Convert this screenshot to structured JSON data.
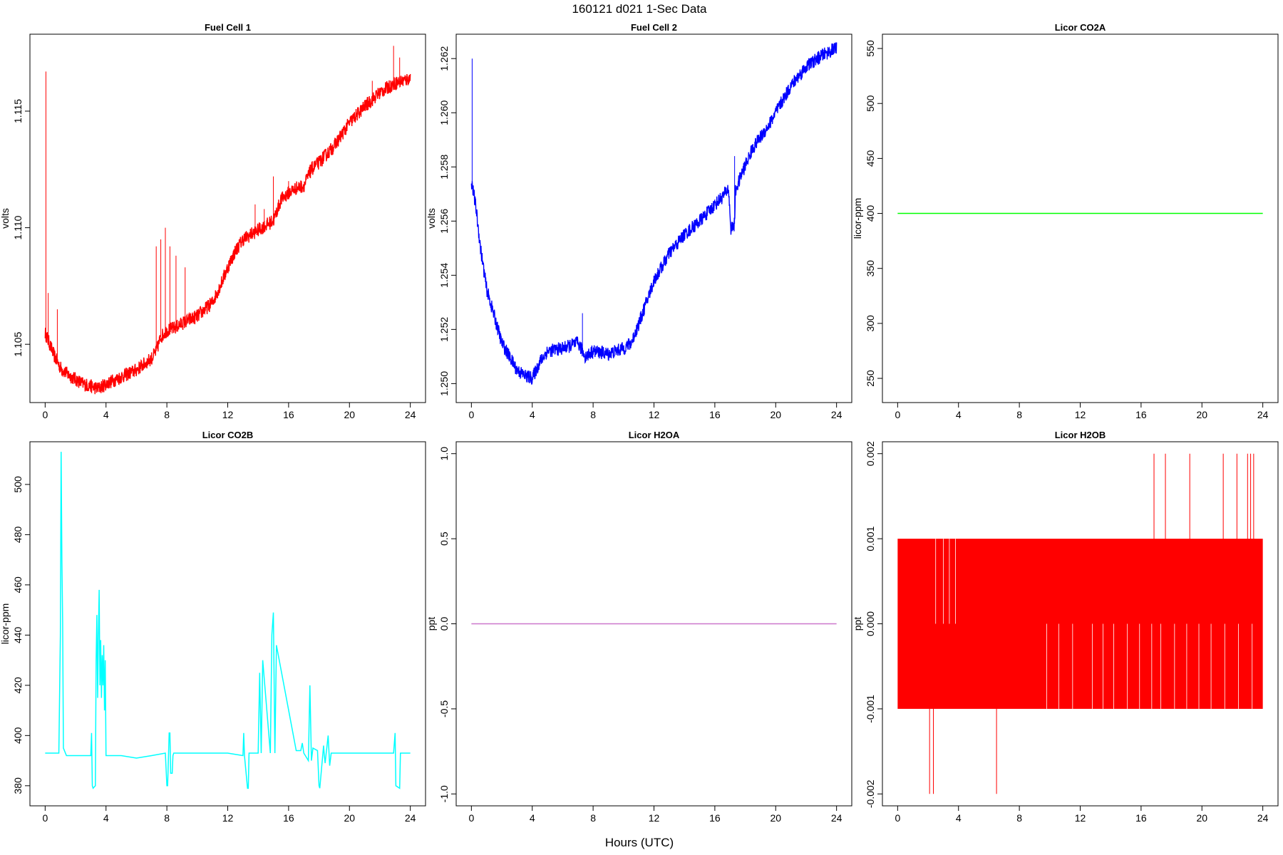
{
  "figure": {
    "title": "160121   d021   1-Sec Data",
    "xlabel": "Hours (UTC)"
  },
  "chart_data": [
    {
      "type": "line",
      "title": "Fuel Cell 1",
      "xlabel": "",
      "ylabel": "volts",
      "color": "#ff0000",
      "xlim": [
        -1,
        25
      ],
      "ylim": [
        1.1025,
        1.1183
      ],
      "x_ticks": [
        0,
        4,
        8,
        12,
        16,
        20,
        24
      ],
      "y_ticks": [
        1.105,
        1.11,
        1.115
      ],
      "y_tick_labels": [
        "1.105",
        "1.110",
        "1.115"
      ],
      "series": [
        {
          "x": [
            0,
            0.3,
            0.6,
            1,
            1.5,
            2,
            2.5,
            3,
            3.5,
            4,
            5,
            6,
            7,
            7.3,
            7.6,
            8,
            8.5,
            9,
            10,
            11,
            11.5,
            12,
            12.5,
            13,
            14,
            15,
            15.5,
            16,
            16.5,
            17,
            17.5,
            18,
            19,
            20,
            21,
            22,
            23,
            24
          ],
          "y": [
            1.1055,
            1.105,
            1.1045,
            1.104,
            1.1037,
            1.1035,
            1.1033,
            1.1032,
            1.1031,
            1.1033,
            1.1036,
            1.1039,
            1.1044,
            1.1047,
            1.1053,
            1.1056,
            1.1057,
            1.1059,
            1.1062,
            1.1068,
            1.1075,
            1.1083,
            1.109,
            1.1095,
            1.1099,
            1.1103,
            1.1112,
            1.1115,
            1.1117,
            1.1118,
            1.1125,
            1.1128,
            1.1135,
            1.1145,
            1.1152,
            1.1158,
            1.1162,
            1.1164
          ],
          "band": 0.0003,
          "spikes": [
            {
              "x": 0.05,
              "top": 1.1167
            },
            {
              "x": 0.2,
              "top": 1.1072
            },
            {
              "x": 0.8,
              "top": 1.1065
            },
            {
              "x": 7.3,
              "top": 1.1092
            },
            {
              "x": 7.6,
              "top": 1.1095
            },
            {
              "x": 7.9,
              "top": 1.11
            },
            {
              "x": 8.2,
              "top": 1.1092
            },
            {
              "x": 8.6,
              "top": 1.1088
            },
            {
              "x": 9.2,
              "top": 1.1083
            },
            {
              "x": 13.8,
              "top": 1.111
            },
            {
              "x": 14.4,
              "top": 1.1108
            },
            {
              "x": 15.0,
              "top": 1.1122
            },
            {
              "x": 16.0,
              "top": 1.112
            },
            {
              "x": 17.4,
              "top": 1.1127
            },
            {
              "x": 18.3,
              "top": 1.1133
            },
            {
              "x": 21.5,
              "top": 1.1163
            },
            {
              "x": 22.9,
              "top": 1.1178
            },
            {
              "x": 23.3,
              "top": 1.1173
            }
          ]
        }
      ]
    },
    {
      "type": "line",
      "title": "Fuel Cell 2",
      "xlabel": "",
      "ylabel": "volts",
      "color": "#0000ff",
      "xlim": [
        -1,
        25
      ],
      "ylim": [
        1.2493,
        1.2629
      ],
      "x_ticks": [
        0,
        4,
        8,
        12,
        16,
        20,
        24
      ],
      "y_ticks": [
        1.25,
        1.252,
        1.254,
        1.256,
        1.258,
        1.26,
        1.262
      ],
      "y_tick_labels": [
        "1.250",
        "1.252",
        "1.254",
        "1.256",
        "1.258",
        "1.260",
        "1.262"
      ],
      "series": [
        {
          "x": [
            0,
            0.3,
            0.6,
            1,
            1.5,
            2,
            2.5,
            3,
            3.5,
            4,
            4.5,
            5,
            6,
            7,
            7.5,
            8,
            9,
            10,
            10.5,
            11,
            12,
            13,
            14,
            15,
            16,
            16.5,
            16.9,
            17.05,
            17.3,
            17.35,
            17.8,
            18.5,
            19.5,
            20,
            21,
            22,
            23,
            24
          ],
          "y": [
            1.2575,
            1.2565,
            1.255,
            1.2535,
            1.2525,
            1.2515,
            1.251,
            1.2505,
            1.2503,
            1.2502,
            1.2508,
            1.2512,
            1.2513,
            1.2515,
            1.251,
            1.2512,
            1.2511,
            1.2513,
            1.2515,
            1.2522,
            1.2538,
            1.2548,
            1.2555,
            1.256,
            1.2566,
            1.2569,
            1.2572,
            1.2557,
            1.2559,
            1.2571,
            1.2578,
            1.2587,
            1.2595,
            1.26,
            1.261,
            1.2617,
            1.2621,
            1.2624
          ],
          "band": 0.00025,
          "spikes": [
            {
              "x": 0.05,
              "top": 1.262
            },
            {
              "x": 7.3,
              "top": 1.2526
            },
            {
              "x": 17.3,
              "top": 1.2584
            }
          ]
        }
      ]
    },
    {
      "type": "line",
      "title": "Licor CO2A",
      "xlabel": "",
      "ylabel": "licor-ppm",
      "color": "#00ff00",
      "xlim": [
        -1,
        25
      ],
      "ylim": [
        228,
        563
      ],
      "x_ticks": [
        0,
        4,
        8,
        12,
        16,
        20,
        24
      ],
      "y_ticks": [
        250,
        300,
        350,
        400,
        450,
        500,
        550
      ],
      "y_tick_labels": [
        "250",
        "300",
        "350",
        "400",
        "450",
        "500",
        "550"
      ],
      "series": [
        {
          "x": [
            0,
            24
          ],
          "y": [
            400,
            400
          ],
          "band": 0,
          "spikes": []
        }
      ]
    },
    {
      "type": "line",
      "title": "Licor CO2B",
      "xlabel": "",
      "ylabel": "licor-ppm",
      "color": "#00ffff",
      "xlim": [
        -1,
        25
      ],
      "ylim": [
        372,
        517
      ],
      "x_ticks": [
        0,
        4,
        8,
        12,
        16,
        20,
        24
      ],
      "y_ticks": [
        380,
        400,
        420,
        440,
        460,
        480,
        500
      ],
      "y_tick_labels": [
        "380",
        "400",
        "420",
        "440",
        "460",
        "480",
        "500"
      ],
      "series": [
        {
          "x": [
            0,
            0.9,
            1.0,
            1.05,
            1.1,
            1.15,
            1.2,
            1.4,
            3.0,
            3.05,
            3.1,
            3.15,
            3.3,
            3.35,
            3.4,
            3.45,
            3.5,
            3.55,
            3.6,
            3.65,
            3.7,
            3.75,
            3.8,
            3.85,
            3.9,
            3.95,
            4.0,
            4.05,
            5,
            6,
            7,
            7.9,
            8.0,
            8.05,
            8.15,
            8.2,
            8.25,
            8.35,
            8.4,
            8.45,
            10,
            12,
            13.0,
            13.05,
            13.1,
            13.3,
            13.35,
            13.4,
            14.0,
            14.1,
            14.2,
            14.3,
            14.8,
            14.9,
            15.0,
            15.1,
            15.2,
            16.5,
            16.8,
            16.9,
            17.0,
            17.1,
            17.3,
            17.4,
            17.5,
            17.6,
            17.9,
            18.0,
            18.05,
            18.3,
            18.35,
            18.4,
            18.6,
            18.7,
            18.8,
            19,
            20,
            21,
            22,
            22.9,
            23.0,
            23.05,
            23.3,
            23.35,
            23.4,
            24
          ],
          "y": [
            393,
            393,
            440,
            513,
            470,
            445,
            395,
            392,
            392,
            401,
            380,
            379,
            380,
            430,
            448,
            415,
            440,
            458,
            420,
            438,
            415,
            432,
            420,
            436,
            410,
            430,
            392,
            392,
            392,
            391,
            392,
            393,
            380,
            380,
            401,
            401,
            385,
            385,
            392,
            393,
            393,
            393,
            392,
            401,
            392,
            379,
            379,
            393,
            393,
            425,
            393,
            430,
            393,
            440,
            449,
            393,
            436,
            394,
            394,
            397,
            393,
            392,
            390,
            420,
            390,
            395,
            394,
            380,
            379,
            396,
            392,
            389,
            400,
            388,
            393,
            393,
            393,
            393,
            393,
            393,
            401,
            380,
            379,
            393,
            393,
            393
          ],
          "band": 0,
          "spikes": []
        }
      ]
    },
    {
      "type": "line",
      "title": "Licor H2OA",
      "xlabel": "",
      "ylabel": "ppt",
      "color": "#cc77cc",
      "xlim": [
        -1,
        25
      ],
      "ylim": [
        -1.07,
        1.07
      ],
      "x_ticks": [
        0,
        4,
        8,
        12,
        16,
        20,
        24
      ],
      "y_ticks": [
        -1.0,
        -0.5,
        0.0,
        0.5,
        1.0
      ],
      "y_tick_labels": [
        "-1.0",
        "-0.5",
        "0.0",
        "0.5",
        "1.0"
      ],
      "series": [
        {
          "x": [
            0,
            24
          ],
          "y": [
            0,
            0
          ],
          "band": 0,
          "spikes": []
        }
      ]
    },
    {
      "type": "line",
      "title": "Licor H2OB",
      "xlabel": "",
      "ylabel": "ppt",
      "color": "#ff0000",
      "xlim": [
        -1,
        25
      ],
      "ylim": [
        -0.00214,
        0.00214
      ],
      "x_ticks": [
        0,
        4,
        8,
        12,
        16,
        20,
        24
      ],
      "y_ticks": [
        -0.002,
        -0.001,
        0.0,
        0.001,
        0.002
      ],
      "y_tick_labels": [
        "-0.002",
        "-0.001",
        "0.000",
        "0.001",
        "0.002"
      ],
      "series": [
        {
          "x": [
            0,
            24
          ],
          "y": [
            0,
            0
          ],
          "fill_range": [
            -0.001,
            0.001
          ],
          "band": 0,
          "spikes": [
            {
              "x": 2.1,
              "bottom": -0.002
            },
            {
              "x": 2.35,
              "bottom": -0.002
            },
            {
              "x": 6.5,
              "bottom": -0.002
            },
            {
              "x": 16.85,
              "top": 0.002
            },
            {
              "x": 17.6,
              "top": 0.002
            },
            {
              "x": 19.2,
              "top": 0.002
            },
            {
              "x": 21.4,
              "top": 0.002
            },
            {
              "x": 22.3,
              "top": 0.002
            },
            {
              "x": 23.0,
              "top": 0.002
            },
            {
              "x": 23.2,
              "top": 0.002
            },
            {
              "x": 23.4,
              "top": 0.002
            }
          ]
        }
      ]
    }
  ]
}
